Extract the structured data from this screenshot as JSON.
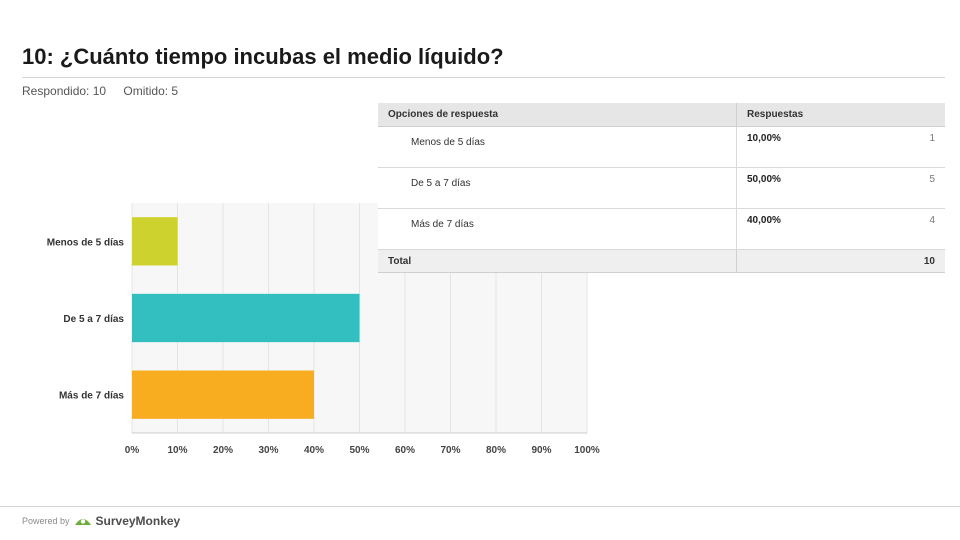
{
  "page": {
    "title": "10: ¿Cuánto tiempo incubas el medio líquido?",
    "answered_label": "Respondido: 10",
    "skipped_label": "Omitido: 5"
  },
  "chart_data": {
    "type": "bar",
    "orientation": "horizontal",
    "categories": [
      "Menos de 5 días",
      "De 5 a 7 días",
      "Más de 7 días"
    ],
    "values": [
      10,
      50,
      40
    ],
    "colors": [
      "#cdd22e",
      "#33bebf",
      "#f7ad1f"
    ],
    "xticks": [
      "0%",
      "10%",
      "20%",
      "30%",
      "40%",
      "50%",
      "60%",
      "70%",
      "80%",
      "90%",
      "100%"
    ],
    "xlim": [
      0,
      100
    ],
    "grid": true,
    "title": "",
    "xlabel": "",
    "ylabel": ""
  },
  "table": {
    "headers": [
      "Opciones de respuesta",
      "Respuestas"
    ],
    "rows": [
      {
        "option": "Menos de 5 días",
        "percent": "10,00%",
        "count": "1"
      },
      {
        "option": "De 5 a 7 días",
        "percent": "50,00%",
        "count": "5"
      },
      {
        "option": "Más de 7 días",
        "percent": "40,00%",
        "count": "4"
      }
    ],
    "total_label": "Total",
    "total_value": "10"
  },
  "footer": {
    "powered_by": "Powered by",
    "brand": "SurveyMonkey"
  },
  "colors": {
    "grid": "#e4e4e4",
    "plot_bg": "#f7f7f7",
    "brand_icon": "#6fae3a"
  }
}
